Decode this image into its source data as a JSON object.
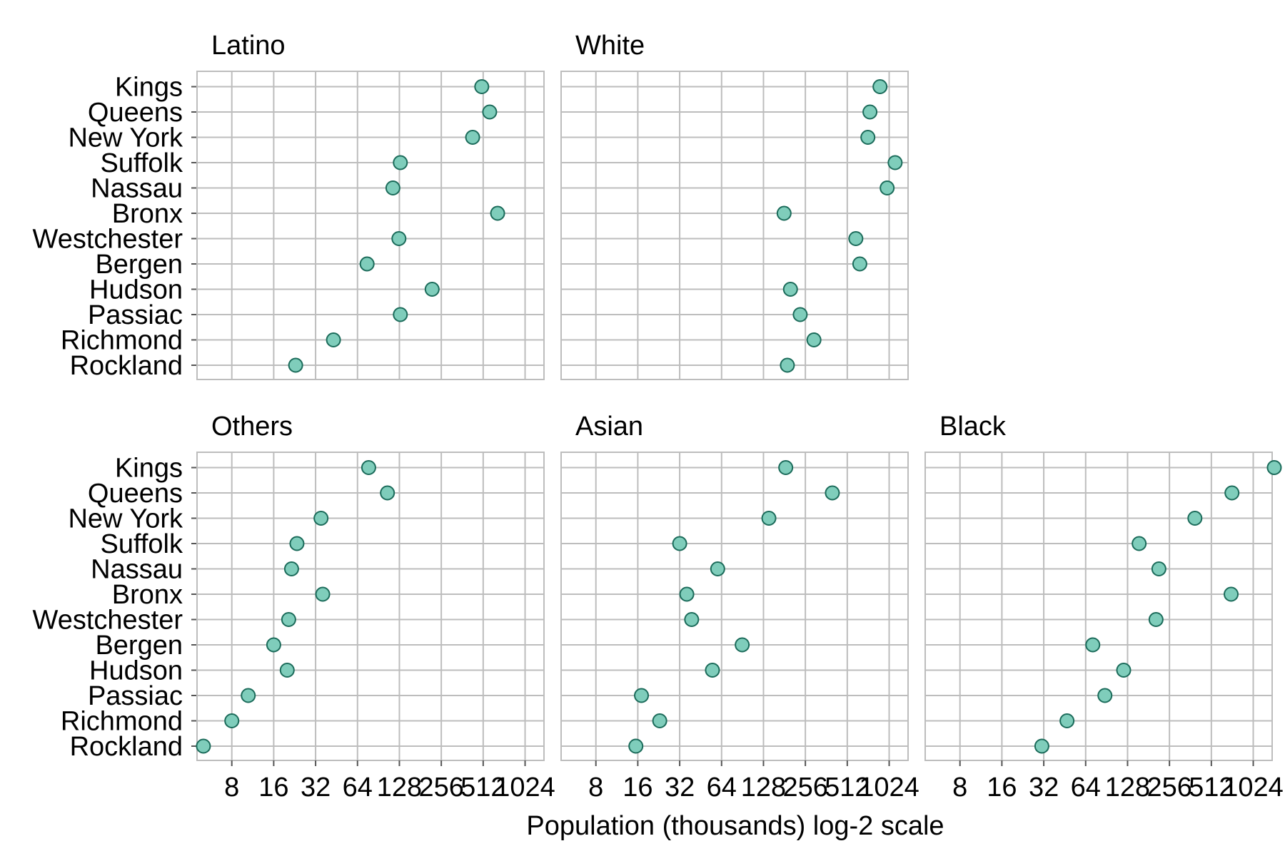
{
  "chart_data": {
    "type": "scatter",
    "xlabel": "Population (thousands) log-2 scale",
    "x_scale": "log2",
    "xlim": [
      4.5,
      1400
    ],
    "x_ticks": [
      8,
      16,
      32,
      64,
      128,
      256,
      512,
      1024
    ],
    "x_tick_labels": [
      "8",
      "16",
      "32",
      "64",
      "128",
      "256",
      "512",
      "1024"
    ],
    "categories": [
      "Kings",
      "Queens",
      "New York",
      "Suffolk",
      "Nassau",
      "Bronx",
      "Westchester",
      "Bergen",
      "Hudson",
      "Passiac",
      "Richmond",
      "Rockland"
    ],
    "grid": true,
    "marker_fill": "#7fcdbb",
    "marker_stroke": "#1b6b5a",
    "facets": [
      {
        "title": "Latino",
        "values": [
          500,
          570,
          430,
          130,
          115,
          650,
          127,
          75,
          220,
          130,
          43,
          23
        ]
      },
      {
        "title": "White",
        "values": [
          880,
          745,
          720,
          1130,
          990,
          180,
          590,
          630,
          200,
          235,
          295,
          190
        ]
      },
      {
        "title": "Others",
        "values": [
          77,
          105,
          35,
          23.5,
          21.5,
          36,
          20.5,
          16,
          20,
          10.5,
          8,
          5
        ]
      },
      {
        "title": "Asian",
        "values": [
          185,
          400,
          140,
          32,
          60,
          36,
          39,
          90,
          55,
          17,
          23,
          15.5
        ]
      },
      {
        "title": "Black",
        "values": [
          1450,
          720,
          390,
          155,
          215,
          710,
          205,
          72,
          120,
          88,
          47,
          31
        ]
      }
    ]
  }
}
